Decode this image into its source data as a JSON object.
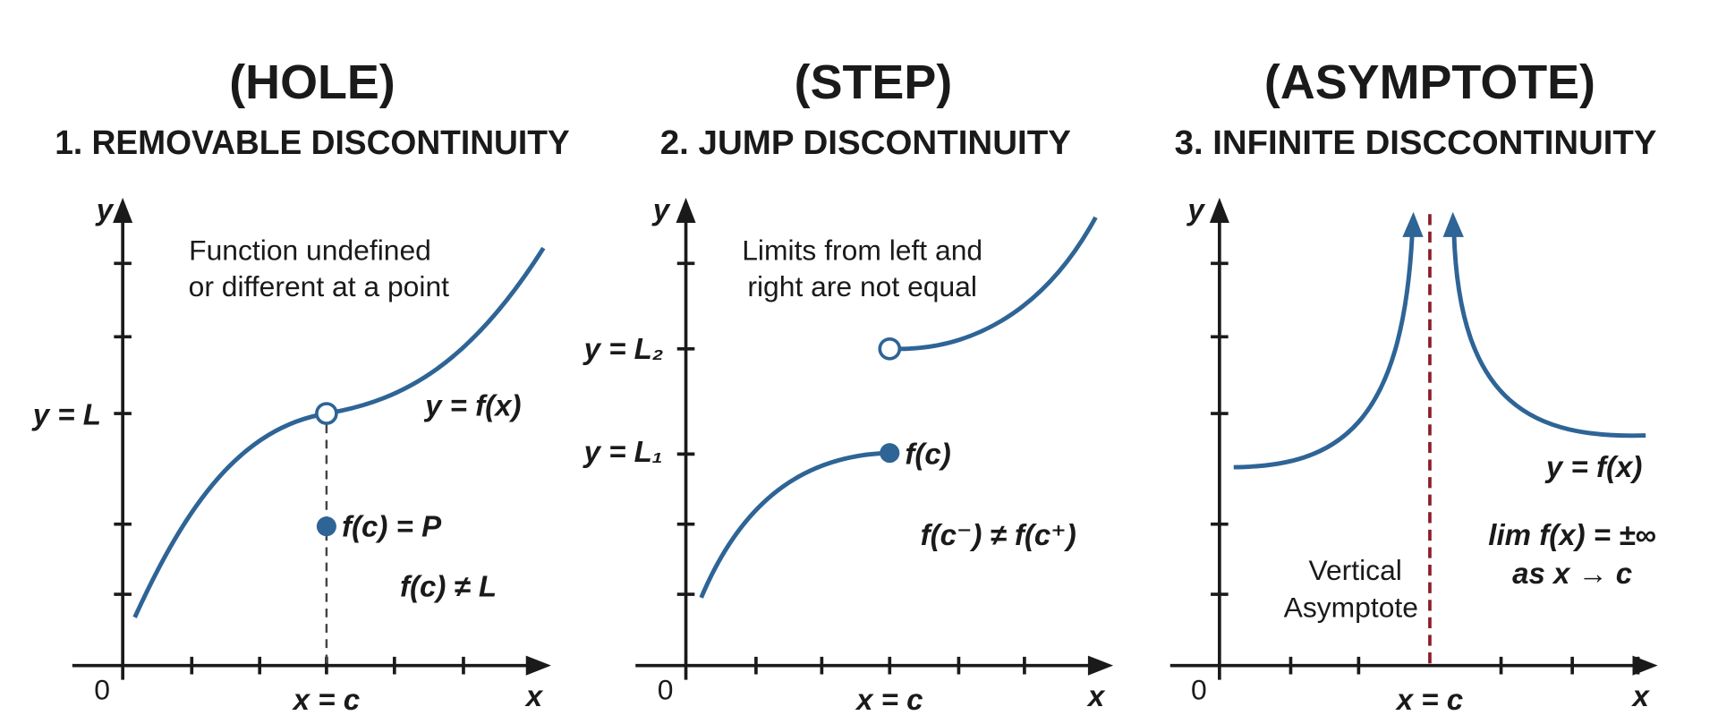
{
  "panels": [
    {
      "heading": "(HOLE)",
      "title": "1. REMOVABLE DISCONTINUITY",
      "axis_y": "y",
      "axis_x": "x",
      "origin": "0",
      "description": [
        "Function undefined",
        "or different at a point"
      ],
      "labels": {
        "y_level": "y = L",
        "curve": "y = f(x)",
        "point": "f(c) = P",
        "note": "f(c) ≠ L",
        "x_level": "x = c"
      }
    },
    {
      "heading": "(STEP)",
      "title": "2. JUMP DISCONTINUITY",
      "axis_y": "y",
      "axis_x": "x",
      "origin": "0",
      "description": [
        "Limits from left and",
        "right are not equal"
      ],
      "labels": {
        "y_upper": "y = L₂",
        "y_lower": "y = L₁",
        "point": "f(c)",
        "note": "f(c⁻) ≠ f(c⁺)",
        "x_level": "x = c"
      }
    },
    {
      "heading": "(ASYMPTOTE)",
      "title": "3. INFINITE DISCCONTINUITY",
      "axis_y": "y",
      "axis_x": "x",
      "origin": "0",
      "description": [
        "Vertical",
        "Asymptote"
      ],
      "labels": {
        "curve": "y = f(x)",
        "limit": "lim f(x) = ±∞",
        "limit_cond": "as x → c",
        "x_level": "x = c"
      }
    }
  ]
}
